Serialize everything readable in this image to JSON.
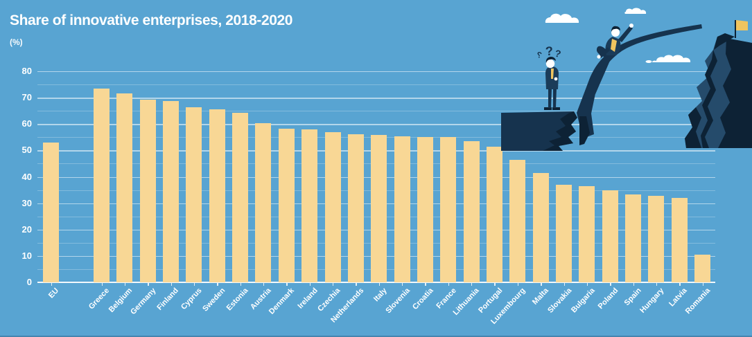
{
  "page": {
    "title": "Share of innovative enterprises, 2018-2020",
    "unit_label": "(%)"
  },
  "chart_data": {
    "type": "bar",
    "title": "Share of innovative enterprises, 2018-2020",
    "xlabel": "",
    "ylabel": "(%)",
    "categories": [
      "EU",
      "Greece",
      "Belgium",
      "Germany",
      "Finland",
      "Cyprus",
      "Sweden",
      "Estonia",
      "Austria",
      "Denmark",
      "Ireland",
      "Czechia",
      "Netherlands",
      "Italy",
      "Slovenia",
      "Croatia",
      "France",
      "Lithuania",
      "Portugal",
      "Luxembourg",
      "Malta",
      "Slovakia",
      "Bulgaria",
      "Poland",
      "Spain",
      "Hungary",
      "Latvia",
      "Romania"
    ],
    "values": [
      53,
      73.4,
      71.6,
      69.2,
      68.8,
      66.3,
      65.7,
      64.2,
      60.2,
      58.3,
      58,
      56.9,
      56.1,
      56,
      55.3,
      55.2,
      55,
      53.4,
      51.3,
      46.3,
      41.4,
      36.9,
      36.4,
      35,
      33.4,
      32.8,
      32.1,
      10.5
    ],
    "ylim": [
      0,
      80
    ],
    "y_major_ticks": [
      0,
      10,
      20,
      30,
      40,
      50,
      60,
      70,
      80
    ],
    "y_minor_step": 5,
    "grid": true,
    "legend_position": "none",
    "first_bar_separated_gap": true,
    "bar_color": "#F8D795",
    "background_color": "#58A4D2",
    "text_color": "#FFFFFF"
  },
  "illustration": {
    "question_marks": "???",
    "colors": {
      "navy_dark": "#0D2235",
      "navy_mid": "#16334E",
      "navy_suit": "#1B3C59",
      "navy_face": "#254B6B",
      "accent_yellow": "#EFC45F",
      "cloud_white": "#FFFFFF"
    }
  }
}
